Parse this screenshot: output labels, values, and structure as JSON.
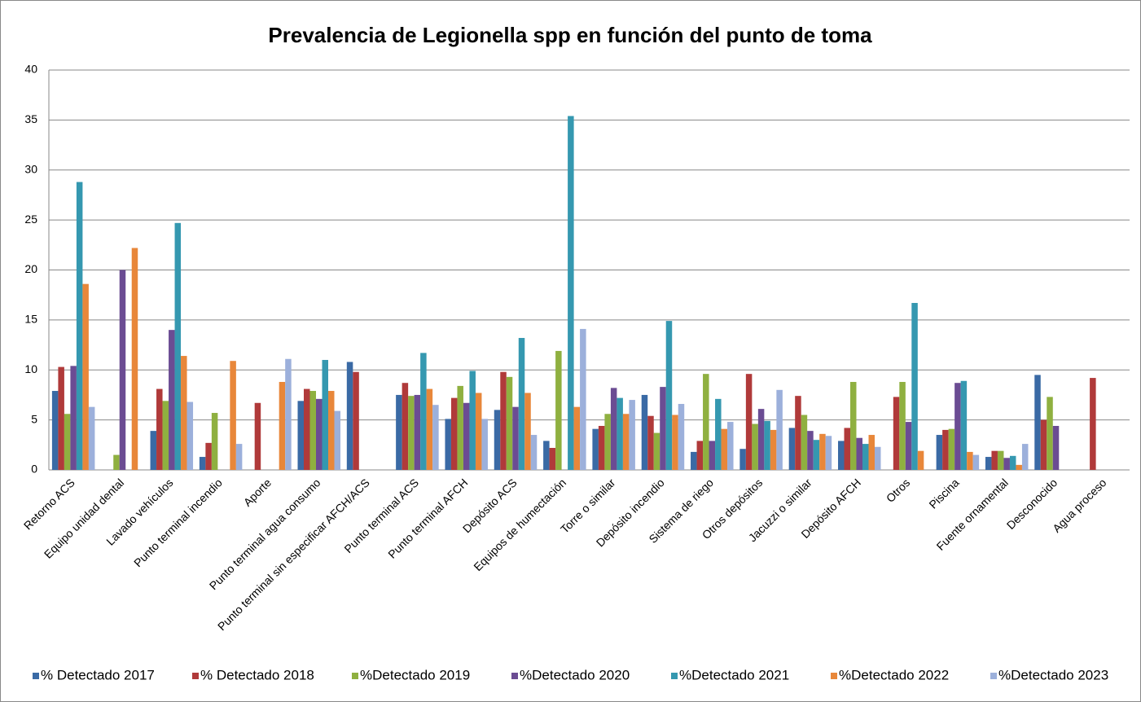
{
  "chart_data": {
    "type": "bar",
    "title": "Prevalencia de Legionella spp en función del punto de toma",
    "categories": [
      "Retorno ACS",
      "Equipo unidad dental",
      "Lavado vehículos",
      "Punto terminal incendio",
      "Aporte",
      "Punto terminal agua consumo",
      "Punto terminal sin especificar AFCH/ACS",
      "Punto terminal ACS",
      "Punto terminal AFCH",
      "Depósito ACS",
      "Equipos de humectación",
      "Torre o similar",
      "Depósito incendio",
      "Sistema de riego",
      "Otros depósitos",
      "Jacuzzi o similar",
      "Depósito AFCH",
      "Otros",
      "Piscina",
      "Fuente ornamental",
      "Desconocido",
      "Agua proceso"
    ],
    "series": [
      {
        "name": "% Detectado 2017",
        "color": "#3a6aa5",
        "values": [
          7.9,
          0,
          3.9,
          1.3,
          0,
          6.9,
          10.8,
          7.5,
          5.1,
          6.0,
          2.9,
          4.1,
          7.5,
          1.8,
          2.1,
          4.2,
          2.9,
          0,
          3.5,
          1.3,
          9.5,
          0
        ]
      },
      {
        "name": "% Detectado 2018",
        "color": "#b03a3a",
        "values": [
          10.3,
          0,
          8.1,
          2.7,
          6.7,
          8.1,
          9.8,
          8.7,
          7.2,
          9.8,
          2.2,
          4.4,
          5.4,
          2.9,
          9.6,
          7.4,
          4.2,
          7.3,
          4.0,
          1.9,
          5.0,
          9.2
        ]
      },
      {
        "name": "%Detectado 2019",
        "color": "#8fb040",
        "values": [
          5.6,
          1.5,
          6.9,
          5.7,
          0,
          7.9,
          0,
          7.4,
          8.4,
          9.3,
          11.9,
          5.6,
          3.7,
          9.6,
          4.6,
          5.5,
          8.8,
          8.8,
          4.1,
          1.9,
          7.3,
          0
        ]
      },
      {
        "name": "%Detectado 2020",
        "color": "#6b4c93",
        "values": [
          10.4,
          20.0,
          14.0,
          0,
          0,
          7.1,
          0,
          7.5,
          6.7,
          6.3,
          0,
          8.2,
          8.3,
          2.9,
          6.1,
          3.9,
          3.2,
          4.8,
          8.7,
          1.2,
          4.4,
          0
        ]
      },
      {
        "name": "%Detectado 2021",
        "color": "#3598b0",
        "values": [
          28.8,
          0,
          24.7,
          0,
          0,
          11.0,
          0,
          11.7,
          9.9,
          13.2,
          35.4,
          7.2,
          14.9,
          7.1,
          4.9,
          3.0,
          2.6,
          16.7,
          8.9,
          1.4,
          0,
          0
        ]
      },
      {
        "name": "%Detectado 2022",
        "color": "#e8873a",
        "values": [
          18.6,
          22.2,
          11.4,
          10.9,
          8.8,
          7.9,
          0,
          8.1,
          7.7,
          7.7,
          6.3,
          5.6,
          5.5,
          4.1,
          4.0,
          3.6,
          3.5,
          1.9,
          1.8,
          0.5,
          0,
          0
        ]
      },
      {
        "name": "%Detectado 2023",
        "color": "#9cb0db",
        "values": [
          6.3,
          0,
          6.8,
          2.6,
          11.1,
          5.9,
          0,
          6.5,
          5.1,
          3.5,
          14.1,
          7.0,
          6.6,
          4.8,
          8.0,
          3.4,
          2.3,
          0,
          1.5,
          2.6,
          0,
          0
        ]
      }
    ],
    "ylim": [
      0,
      40
    ],
    "yticks": [
      0,
      5,
      10,
      15,
      20,
      25,
      30,
      35,
      40
    ],
    "grid": true,
    "legend": "bottom"
  }
}
